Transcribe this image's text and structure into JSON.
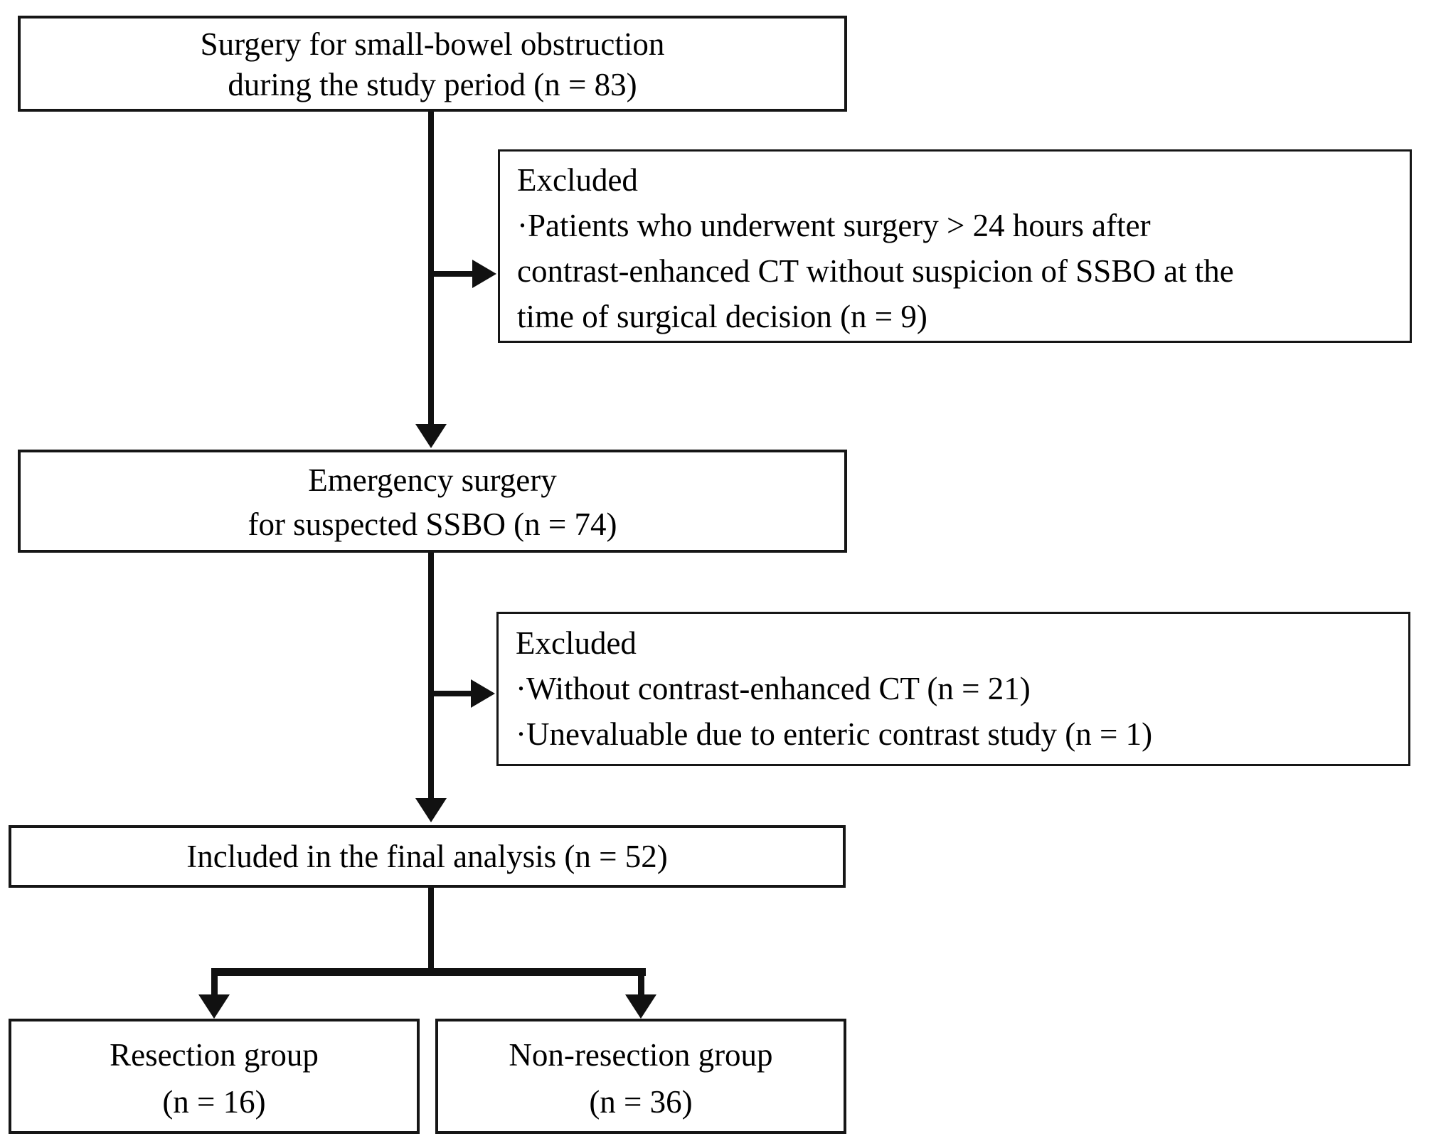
{
  "figure": {
    "type": "study-flow-diagram",
    "background_color": "#ffffff",
    "line_color": "#111111",
    "text_color": "#000000"
  },
  "boxes": {
    "surgery": {
      "lines": [
        "Surgery for small-bowel obstruction",
        "during the study period (n = 83)"
      ]
    },
    "excluded1": {
      "lines": [
        "Excluded",
        "·Patients who underwent surgery > 24 hours after",
        "contrast-enhanced CT without suspicion of SSBO at the",
        "time of surgical decision (n = 9)"
      ]
    },
    "emergency": {
      "lines": [
        "Emergency surgery",
        "for suspected SSBO (n = 74)"
      ]
    },
    "excluded2": {
      "lines": [
        "Excluded",
        "·Without contrast-enhanced CT (n = 21)",
        "·Unevaluable due to enteric contrast study (n = 1)"
      ]
    },
    "included": {
      "lines": [
        "Included in the final analysis (n = 52)"
      ]
    },
    "resection": {
      "lines": [
        "Resection group",
        "(n = 16)"
      ]
    },
    "non_resection": {
      "lines": [
        "Non-resection group",
        "(n = 36)"
      ]
    }
  }
}
